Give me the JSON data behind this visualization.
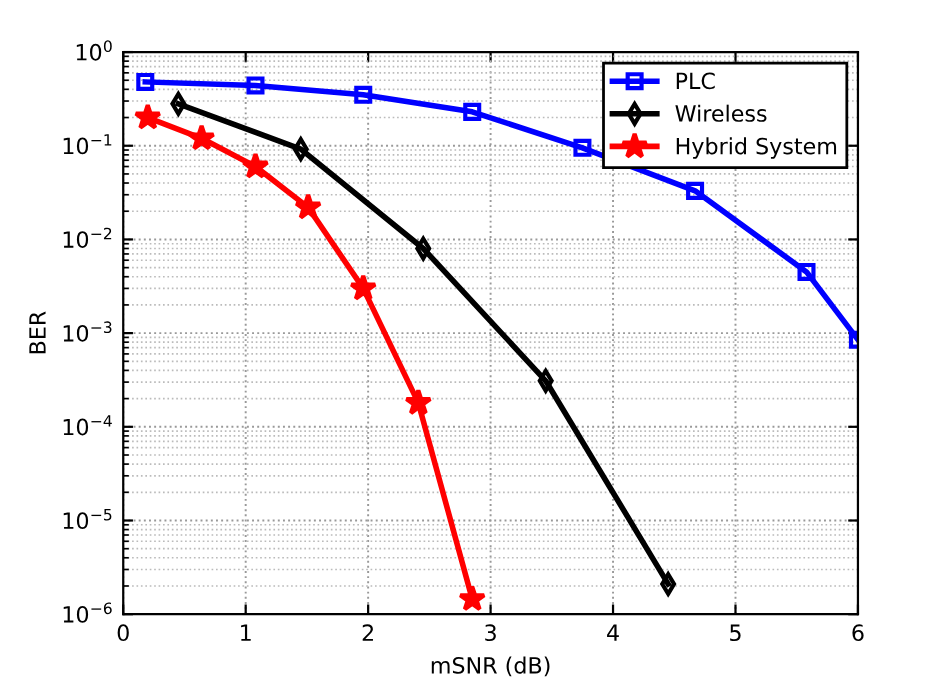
{
  "chart_data": {
    "type": "line",
    "xlabel": "mSNR (dB)",
    "ylabel": "BER",
    "log": "y",
    "grid": true,
    "legend": "top right",
    "line_style": "solid",
    "xlim": [
      0,
      6
    ],
    "xticks": [
      0,
      1,
      2,
      3,
      4,
      5,
      6
    ],
    "ylim": [
      1e-06,
      1
    ],
    "yticks": [
      {
        "value": 1e-06,
        "label": "10$^{−6}$"
      },
      {
        "value": 1e-05,
        "label": "10$^{−5}$"
      },
      {
        "value": 0.0001,
        "label": "10$^{−4}$"
      },
      {
        "value": 0.001,
        "label": "10$^{−3}$"
      },
      {
        "value": 0.01,
        "label": "10$^{−2}$"
      },
      {
        "value": 0.1,
        "label": "10$^{−1}$"
      },
      {
        "value": 1,
        "label": "10$^{0}$"
      }
    ],
    "series": [
      {
        "name": "PLC",
        "color": "#0000ff",
        "marker": "square",
        "x": [
          0.18,
          1.08,
          1.96,
          2.85,
          3.75,
          4.67,
          5.58,
          6
        ],
        "values": [
          0.48,
          0.44,
          0.35,
          0.23,
          0.095,
          0.033,
          0.0045,
          0.00085
        ]
      },
      {
        "name": "Wireless",
        "color": "#000000",
        "marker": "diamond",
        "x": [
          0.45,
          1.45,
          2.45,
          3.45,
          4.45
        ],
        "values": [
          0.28,
          0.092,
          0.008,
          0.00031,
          2.1e-06
        ]
      },
      {
        "name": "Hybrid System",
        "color": "#ff0000",
        "marker": "star",
        "x": [
          0.2,
          0.64,
          1.08,
          1.51,
          1.96,
          2.41,
          2.85
        ],
        "values": [
          0.2,
          0.12,
          0.06,
          0.022,
          0.003,
          0.00018,
          1.45e-06
        ]
      }
    ]
  }
}
